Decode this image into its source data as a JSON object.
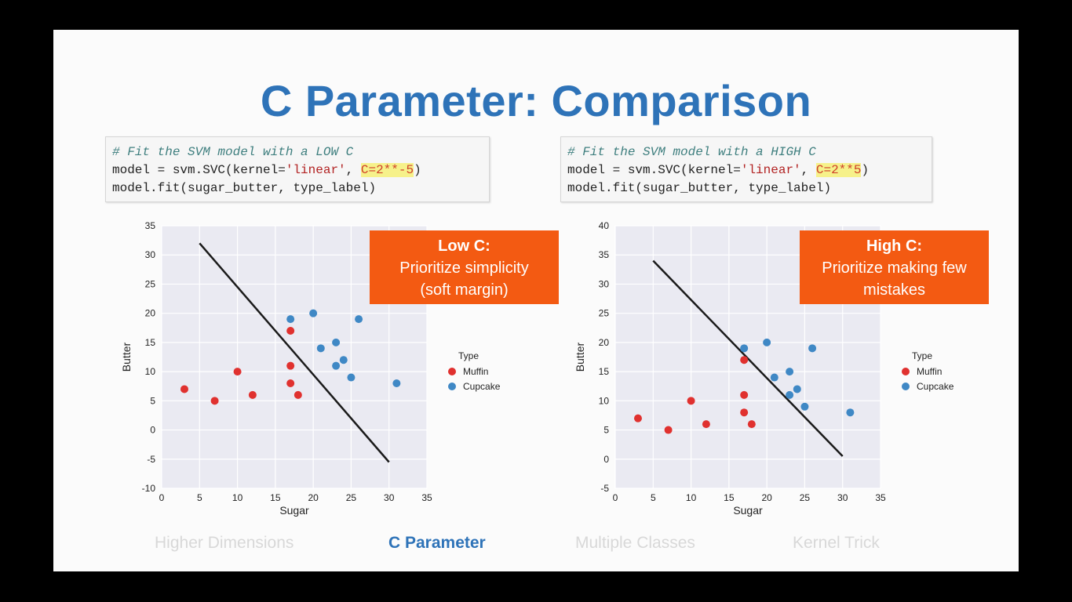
{
  "title": "C Parameter: Comparison",
  "code_left": {
    "comment": "# Fit the SVM model with a LOW C",
    "line2_prefix": "model = svm.SVC(kernel=",
    "kernel_str": "'linear'",
    "line2_sep": ", ",
    "c_value": "C=2**-5",
    "line2_suffix": ")",
    "line3": "model.fit(sugar_butter, type_label)"
  },
  "code_right": {
    "comment": "# Fit the SVM model with a HIGH C",
    "line2_prefix": "model = svm.SVC(kernel=",
    "kernel_str": "'linear'",
    "line2_sep": ", ",
    "c_value": "C=2**5",
    "line2_suffix": ")",
    "line3": "model.fit(sugar_butter, type_label)"
  },
  "callout_left": {
    "head": "Low C:",
    "line1": "Prioritize simplicity",
    "line2": "(soft margin)"
  },
  "callout_right": {
    "head": "High C:",
    "line1": "Prioritize making few",
    "line2": "mistakes"
  },
  "nav": [
    {
      "label": "Higher Dimensions",
      "active": false
    },
    {
      "label": "C Parameter",
      "active": true
    },
    {
      "label": "Multiple Classes",
      "active": false
    },
    {
      "label": "Kernel Trick",
      "active": false
    }
  ],
  "colors": {
    "muffin": "#e0312f",
    "cupcake": "#3f88c5",
    "line": "#1a1a1a",
    "plot_bg": "#eaeaf2",
    "accent": "#2e73b8",
    "callout": "#f35a12"
  },
  "chart_data": [
    {
      "type": "scatter",
      "xlabel": "Sugar",
      "ylabel": "Butter",
      "xlim": [
        0,
        35
      ],
      "ylim": [
        -10,
        35
      ],
      "xticks": [
        0,
        5,
        10,
        15,
        20,
        25,
        30,
        35
      ],
      "yticks": [
        -10,
        -5,
        0,
        5,
        10,
        15,
        20,
        25,
        30,
        35
      ],
      "grid": true,
      "legend_title": "Type",
      "legend_position": "right",
      "series": [
        {
          "name": "Muffin",
          "color": "#e0312f",
          "points": [
            [
              3,
              7
            ],
            [
              7,
              5
            ],
            [
              10,
              10
            ],
            [
              12,
              6
            ],
            [
              17,
              17
            ],
            [
              17,
              11
            ],
            [
              17,
              8
            ],
            [
              18,
              6
            ]
          ]
        },
        {
          "name": "Cupcake",
          "color": "#3f88c5",
          "points": [
            [
              17,
              19
            ],
            [
              20,
              20
            ],
            [
              21,
              14
            ],
            [
              23,
              15
            ],
            [
              23,
              11
            ],
            [
              24,
              12
            ],
            [
              25,
              9
            ],
            [
              26,
              19
            ],
            [
              31,
              8
            ]
          ]
        }
      ],
      "decision_line": [
        [
          5,
          32
        ],
        [
          30,
          -5.5
        ]
      ]
    },
    {
      "type": "scatter",
      "xlabel": "Sugar",
      "ylabel": "Butter",
      "xlim": [
        0,
        35
      ],
      "ylim": [
        -5,
        40
      ],
      "xticks": [
        0,
        5,
        10,
        15,
        20,
        25,
        30,
        35
      ],
      "yticks": [
        -5,
        0,
        5,
        10,
        15,
        20,
        25,
        30,
        35,
        40
      ],
      "grid": true,
      "legend_title": "Type",
      "legend_position": "right",
      "series": [
        {
          "name": "Muffin",
          "color": "#e0312f",
          "points": [
            [
              3,
              7
            ],
            [
              7,
              5
            ],
            [
              10,
              10
            ],
            [
              12,
              6
            ],
            [
              17,
              17
            ],
            [
              17,
              11
            ],
            [
              17,
              8
            ],
            [
              18,
              6
            ]
          ]
        },
        {
          "name": "Cupcake",
          "color": "#3f88c5",
          "points": [
            [
              17,
              19
            ],
            [
              20,
              20
            ],
            [
              21,
              14
            ],
            [
              23,
              15
            ],
            [
              23,
              11
            ],
            [
              24,
              12
            ],
            [
              25,
              9
            ],
            [
              26,
              19
            ],
            [
              31,
              8
            ]
          ]
        }
      ],
      "decision_line": [
        [
          5,
          34
        ],
        [
          30,
          0.5
        ]
      ]
    }
  ]
}
